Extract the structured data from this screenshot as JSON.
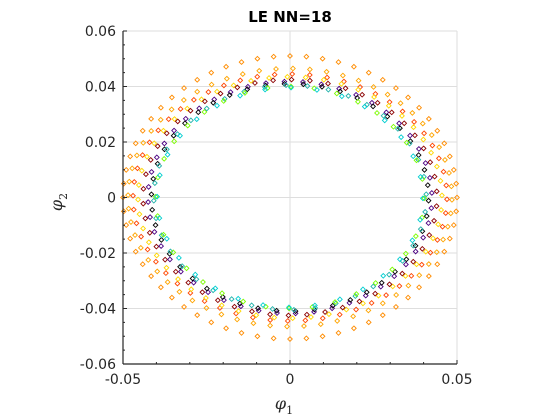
{
  "chart_data": {
    "type": "scatter",
    "title": "LE NN=18",
    "xlabel": {
      "symbol": "φ",
      "subscript": "1"
    },
    "ylabel": {
      "symbol": "φ",
      "subscript": "2"
    },
    "xlim": [
      -0.05,
      0.05
    ],
    "ylim": [
      -0.06,
      0.06
    ],
    "xticks": [
      -0.05,
      0,
      0.05
    ],
    "xtick_labels": [
      "-0.05",
      "0",
      "0.05"
    ],
    "yticks": [
      -0.06,
      -0.04,
      -0.02,
      0,
      0.02,
      0.04,
      0.06
    ],
    "ytick_labels": [
      "-0.06",
      "-0.04",
      "-0.02",
      "0",
      "0.02",
      "0.04",
      "0.06"
    ],
    "grid": true,
    "marker": "diamond",
    "series": [
      {
        "color": "#ff8c00",
        "rx": 0.05,
        "ry": 0.051,
        "count": 64
      },
      {
        "color": "#ffa500",
        "rx": 0.0485,
        "ry": 0.0465,
        "count": 60
      },
      {
        "color": "#ff4500",
        "rx": 0.047,
        "ry": 0.0445,
        "count": 56
      },
      {
        "color": "#ffd700",
        "rx": 0.0455,
        "ry": 0.0435,
        "count": 52
      },
      {
        "color": "#8b0000",
        "rx": 0.044,
        "ry": 0.0425,
        "count": 50
      },
      {
        "color": "#4b0082",
        "rx": 0.0425,
        "ry": 0.0418,
        "count": 48
      },
      {
        "color": "#000000",
        "rx": 0.0415,
        "ry": 0.041,
        "count": 46
      },
      {
        "color": "#20b2aa",
        "rx": 0.0408,
        "ry": 0.0405,
        "count": 40
      },
      {
        "color": "#7cfc00",
        "rx": 0.0402,
        "ry": 0.04,
        "count": 36
      },
      {
        "color": "#00ced1",
        "rx": 0.0398,
        "ry": 0.0396,
        "count": 32
      }
    ]
  }
}
